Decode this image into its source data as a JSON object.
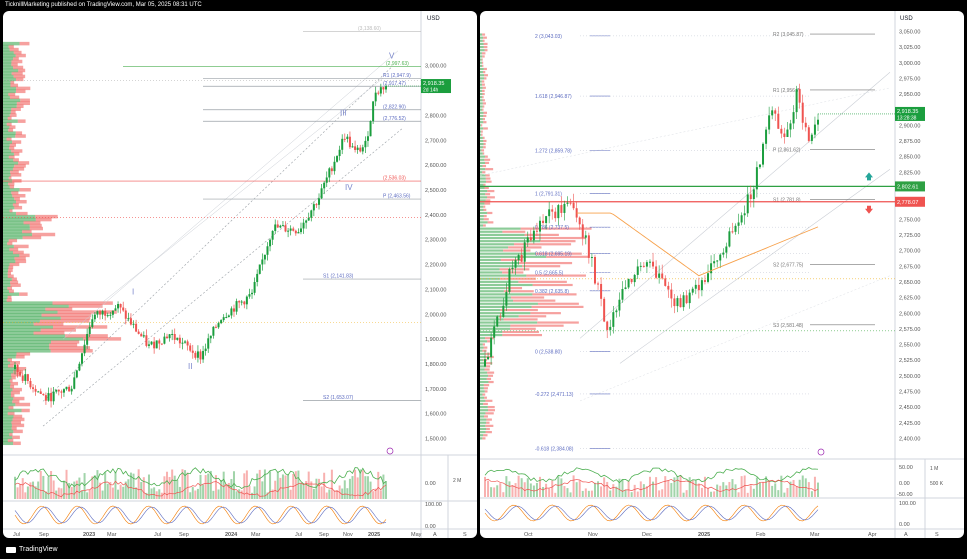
{
  "header": {
    "publisher": "TicknillMarketing published on TradingView.com, Mar 05, 2025 08:31 UTC"
  },
  "footer": {
    "brand": "TradingView"
  },
  "colors": {
    "bull": "#26a69a",
    "bull_green": "#1b9e3e",
    "bear": "#ef5350",
    "fib_blue": "#5c6bc0",
    "ema": "#f7a14b",
    "wave": "#7986cb",
    "price_tag": "#1b9e3e",
    "resistance": "#ef5350",
    "support": "#2ea043"
  },
  "chart_data": [
    {
      "type": "candlestick",
      "panel": "weekly",
      "currency": "USD",
      "y_ticks": [
        "3,000.00",
        "2,900.00",
        "2,800.00",
        "2,700.00",
        "2,600.00",
        "2,500.00",
        "2,400.00",
        "2,300.00",
        "2,200.00",
        "2,100.00",
        "2,000.00",
        "1,900.00",
        "1,800.00",
        "1,700.00",
        "1,600.00",
        "1,500.00"
      ],
      "ylim": [
        1450,
        3180
      ],
      "x_ticks": [
        "Jul",
        "Sep",
        "2023",
        "Mar",
        "Jul",
        "Sep",
        "2024",
        "Mar",
        "Jul",
        "Sep",
        "Nov",
        "2025",
        "May"
      ],
      "price_label": {
        "value": "2,918.35",
        "sub": "2d 14h"
      },
      "levels": [
        {
          "label": "(3,138.60)",
          "price": 3138.6
        },
        {
          "label": "(2,997.63)",
          "price": 2997.63
        },
        {
          "label": "R1 (2,947.9)",
          "price": 2947.9
        },
        {
          "label": "(2,917.47)",
          "price": 2917.47
        },
        {
          "label": "(2,822.90)",
          "price": 2822.9
        },
        {
          "label": "(2,776.52)",
          "price": 2776.52
        },
        {
          "label": "(2,536.03)",
          "price": 2536.03
        },
        {
          "label": "P (2,463.56)",
          "price": 2463.56
        },
        {
          "label": "S1 (2,141.83)",
          "price": 2141.83
        },
        {
          "label": "S2 (1,653.07)",
          "price": 1653.07
        }
      ],
      "waves": [
        {
          "label": "I"
        },
        {
          "label": "II"
        },
        {
          "label": "III"
        },
        {
          "label": "IV"
        },
        {
          "label": "V"
        }
      ],
      "oscillator_ticks": [
        "0.00",
        "100.00",
        "0.00"
      ],
      "volume_label": "2 M",
      "bottom_letters": [
        "A",
        "S"
      ]
    },
    {
      "type": "candlestick",
      "panel": "daily",
      "currency": "USD",
      "y_ticks": [
        "3,050.00",
        "3,025.00",
        "3,000.00",
        "2,975.00",
        "2,950.00",
        "2,925.00",
        "2,900.00",
        "2,875.00",
        "2,850.00",
        "2,825.00",
        "2,800.00",
        "2,775.00",
        "2,750.00",
        "2,725.00",
        "2,700.00",
        "2,675.00",
        "2,650.00",
        "2,625.00",
        "2,600.00",
        "2,575.00",
        "2,550.00",
        "2,525.00",
        "2,500.00",
        "2,475.00",
        "2,450.00",
        "2,425.00",
        "2,400.00"
      ],
      "ylim": [
        2380,
        3070
      ],
      "x_ticks": [
        "Oct",
        "Nov",
        "Dec",
        "2025",
        "Feb",
        "Mar",
        "Apr"
      ],
      "price_label": {
        "value": "2,918.35",
        "sub": "13:28:38"
      },
      "resistance": {
        "value": "2,802.61",
        "price": 2802.61
      },
      "support": {
        "value": "2,778.07",
        "price": 2778.07
      },
      "fib_levels": [
        {
          "label": "2 (3,043.03)",
          "price": 3043.03
        },
        {
          "label": "1.618 (2,946.87)",
          "price": 2946.87
        },
        {
          "label": "1.272 (2,859.78)",
          "price": 2859.78
        },
        {
          "label": "1 (2,791.31)",
          "price": 2791.31
        },
        {
          "label": "0.786 (2,737.5)",
          "price": 2737.5
        },
        {
          "label": "0.618 (2,695.19)",
          "price": 2695.19
        },
        {
          "label": "0.5 (2,665.5)",
          "price": 2665.5
        },
        {
          "label": "0.382 (2,635.8)",
          "price": 2635.8
        },
        {
          "label": "0 (2,538.80)",
          "price": 2538.8
        },
        {
          "label": "-0.272 (2,471.13)",
          "price": 2471.13
        },
        {
          "label": "-0.618 (2,384.08)",
          "price": 2384.08
        }
      ],
      "pivots": [
        {
          "label": "R2 (3,045.87)",
          "price": 3045.87
        },
        {
          "label": "R1 (2,956.7)",
          "price": 2956.7
        },
        {
          "label": "P (2,861.62)",
          "price": 2861.62
        },
        {
          "label": "S1 (2,781.8)",
          "price": 2781.8
        },
        {
          "label": "S2 (2,677.75)",
          "price": 2677.75
        },
        {
          "label": "S3 (2,581.48)",
          "price": 2581.48
        }
      ],
      "rsi_ticks": [
        "50.00",
        "0.00",
        "-50.00"
      ],
      "volume_ticks": [
        "1 M",
        "500 K"
      ],
      "stoch_ticks": [
        "100.00",
        "0.00"
      ],
      "bottom_letters": [
        "A",
        "S"
      ]
    }
  ]
}
